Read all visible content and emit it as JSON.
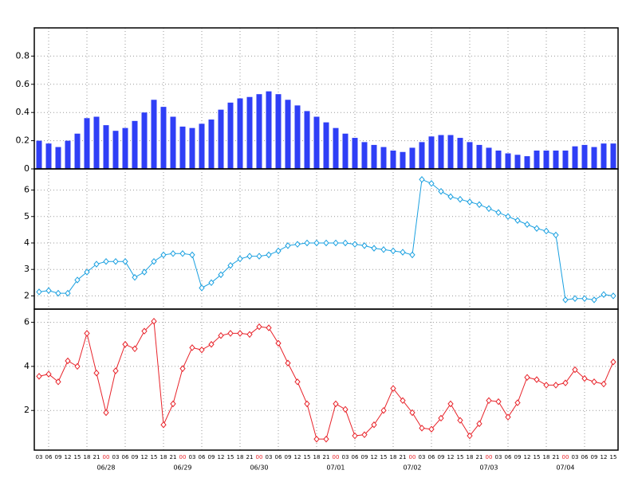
{
  "chart_data": [
    {
      "type": "bar",
      "color": "#2f3ff6",
      "ylim": [
        0,
        1.0
      ],
      "yticks": [
        0,
        0.2,
        0.4,
        0.6,
        0.8
      ],
      "grid": true,
      "values": [
        0.2,
        0.18,
        0.155,
        0.2,
        0.25,
        0.36,
        0.37,
        0.31,
        0.27,
        0.29,
        0.34,
        0.4,
        0.49,
        0.44,
        0.37,
        0.3,
        0.29,
        0.32,
        0.35,
        0.42,
        0.47,
        0.5,
        0.51,
        0.53,
        0.55,
        0.53,
        0.49,
        0.45,
        0.41,
        0.37,
        0.33,
        0.29,
        0.25,
        0.22,
        0.19,
        0.17,
        0.155,
        0.13,
        0.12,
        0.15,
        0.19,
        0.23,
        0.24,
        0.24,
        0.22,
        0.19,
        0.17,
        0.15,
        0.13,
        0.11,
        0.1,
        0.09,
        0.13,
        0.13,
        0.13,
        0.13,
        0.16,
        0.17,
        0.155,
        0.18,
        0.18
      ]
    },
    {
      "type": "line",
      "color": "#1aa0e0",
      "ylim": [
        1.5,
        6.8
      ],
      "yticks": [
        2,
        3,
        4,
        5,
        6
      ],
      "grid": true,
      "marker": "diamond",
      "values": [
        2.15,
        2.2,
        2.1,
        2.1,
        2.6,
        2.9,
        3.2,
        3.3,
        3.3,
        3.3,
        2.7,
        2.9,
        3.3,
        3.55,
        3.6,
        3.6,
        3.55,
        2.3,
        2.5,
        2.8,
        3.15,
        3.4,
        3.5,
        3.5,
        3.55,
        3.7,
        3.9,
        3.95,
        4.0,
        4.0,
        4.0,
        4.0,
        4.0,
        3.95,
        3.9,
        3.8,
        3.75,
        3.7,
        3.65,
        3.55,
        6.4,
        6.25,
        5.95,
        5.75,
        5.65,
        5.55,
        5.45,
        5.3,
        5.15,
        5.0,
        4.85,
        4.7,
        4.55,
        4.45,
        4.3,
        1.85,
        1.9,
        1.9,
        1.85,
        2.05,
        2.0
      ]
    },
    {
      "type": "line",
      "color": "#e8232a",
      "ylim": [
        0.2,
        6.6
      ],
      "yticks": [
        2,
        4,
        6
      ],
      "grid": true,
      "marker": "diamond",
      "values": [
        3.55,
        3.65,
        3.3,
        4.25,
        4.0,
        5.5,
        3.7,
        1.9,
        3.8,
        5.0,
        4.8,
        5.6,
        6.05,
        1.35,
        2.3,
        3.9,
        4.85,
        4.75,
        5.0,
        5.4,
        5.5,
        5.5,
        5.45,
        5.8,
        5.75,
        5.05,
        4.15,
        3.3,
        2.3,
        0.7,
        0.7,
        2.3,
        2.05,
        0.85,
        0.9,
        1.35,
        2.0,
        3.0,
        2.45,
        1.9,
        1.2,
        1.15,
        1.65,
        2.3,
        1.55,
        0.85,
        1.4,
        2.45,
        2.4,
        1.7,
        2.35,
        3.5,
        3.4,
        3.15,
        3.15,
        3.25,
        3.85,
        3.45,
        3.3,
        3.2,
        4.2
      ],
      "categories": [
        "03",
        "06",
        "09",
        "12",
        "15",
        "18",
        "21",
        "00",
        "03",
        "06",
        "09",
        "12",
        "15",
        "18",
        "21",
        "00",
        "03",
        "06",
        "09",
        "12",
        "15",
        "18",
        "21",
        "00",
        "03",
        "06",
        "09",
        "12",
        "15",
        "18",
        "21",
        "00",
        "03",
        "06",
        "09",
        "12",
        "15",
        "18",
        "21",
        "00",
        "03",
        "06",
        "09",
        "12",
        "15",
        "18",
        "21",
        "00",
        "03",
        "06",
        "09",
        "12",
        "15",
        "18",
        "21",
        "00",
        "03",
        "06",
        "09",
        "12",
        "15"
      ],
      "day_labels": [
        {
          "value": 7,
          "label": "06/28"
        },
        {
          "value": 15,
          "label": "06/29"
        },
        {
          "value": 23,
          "label": "06/30"
        },
        {
          "value": 31,
          "label": "07/01"
        },
        {
          "value": 39,
          "label": "07/02"
        },
        {
          "value": 47,
          "label": "07/03"
        },
        {
          "value": 55,
          "label": "07/04"
        }
      ],
      "day_label_color": "#e8232a"
    }
  ]
}
